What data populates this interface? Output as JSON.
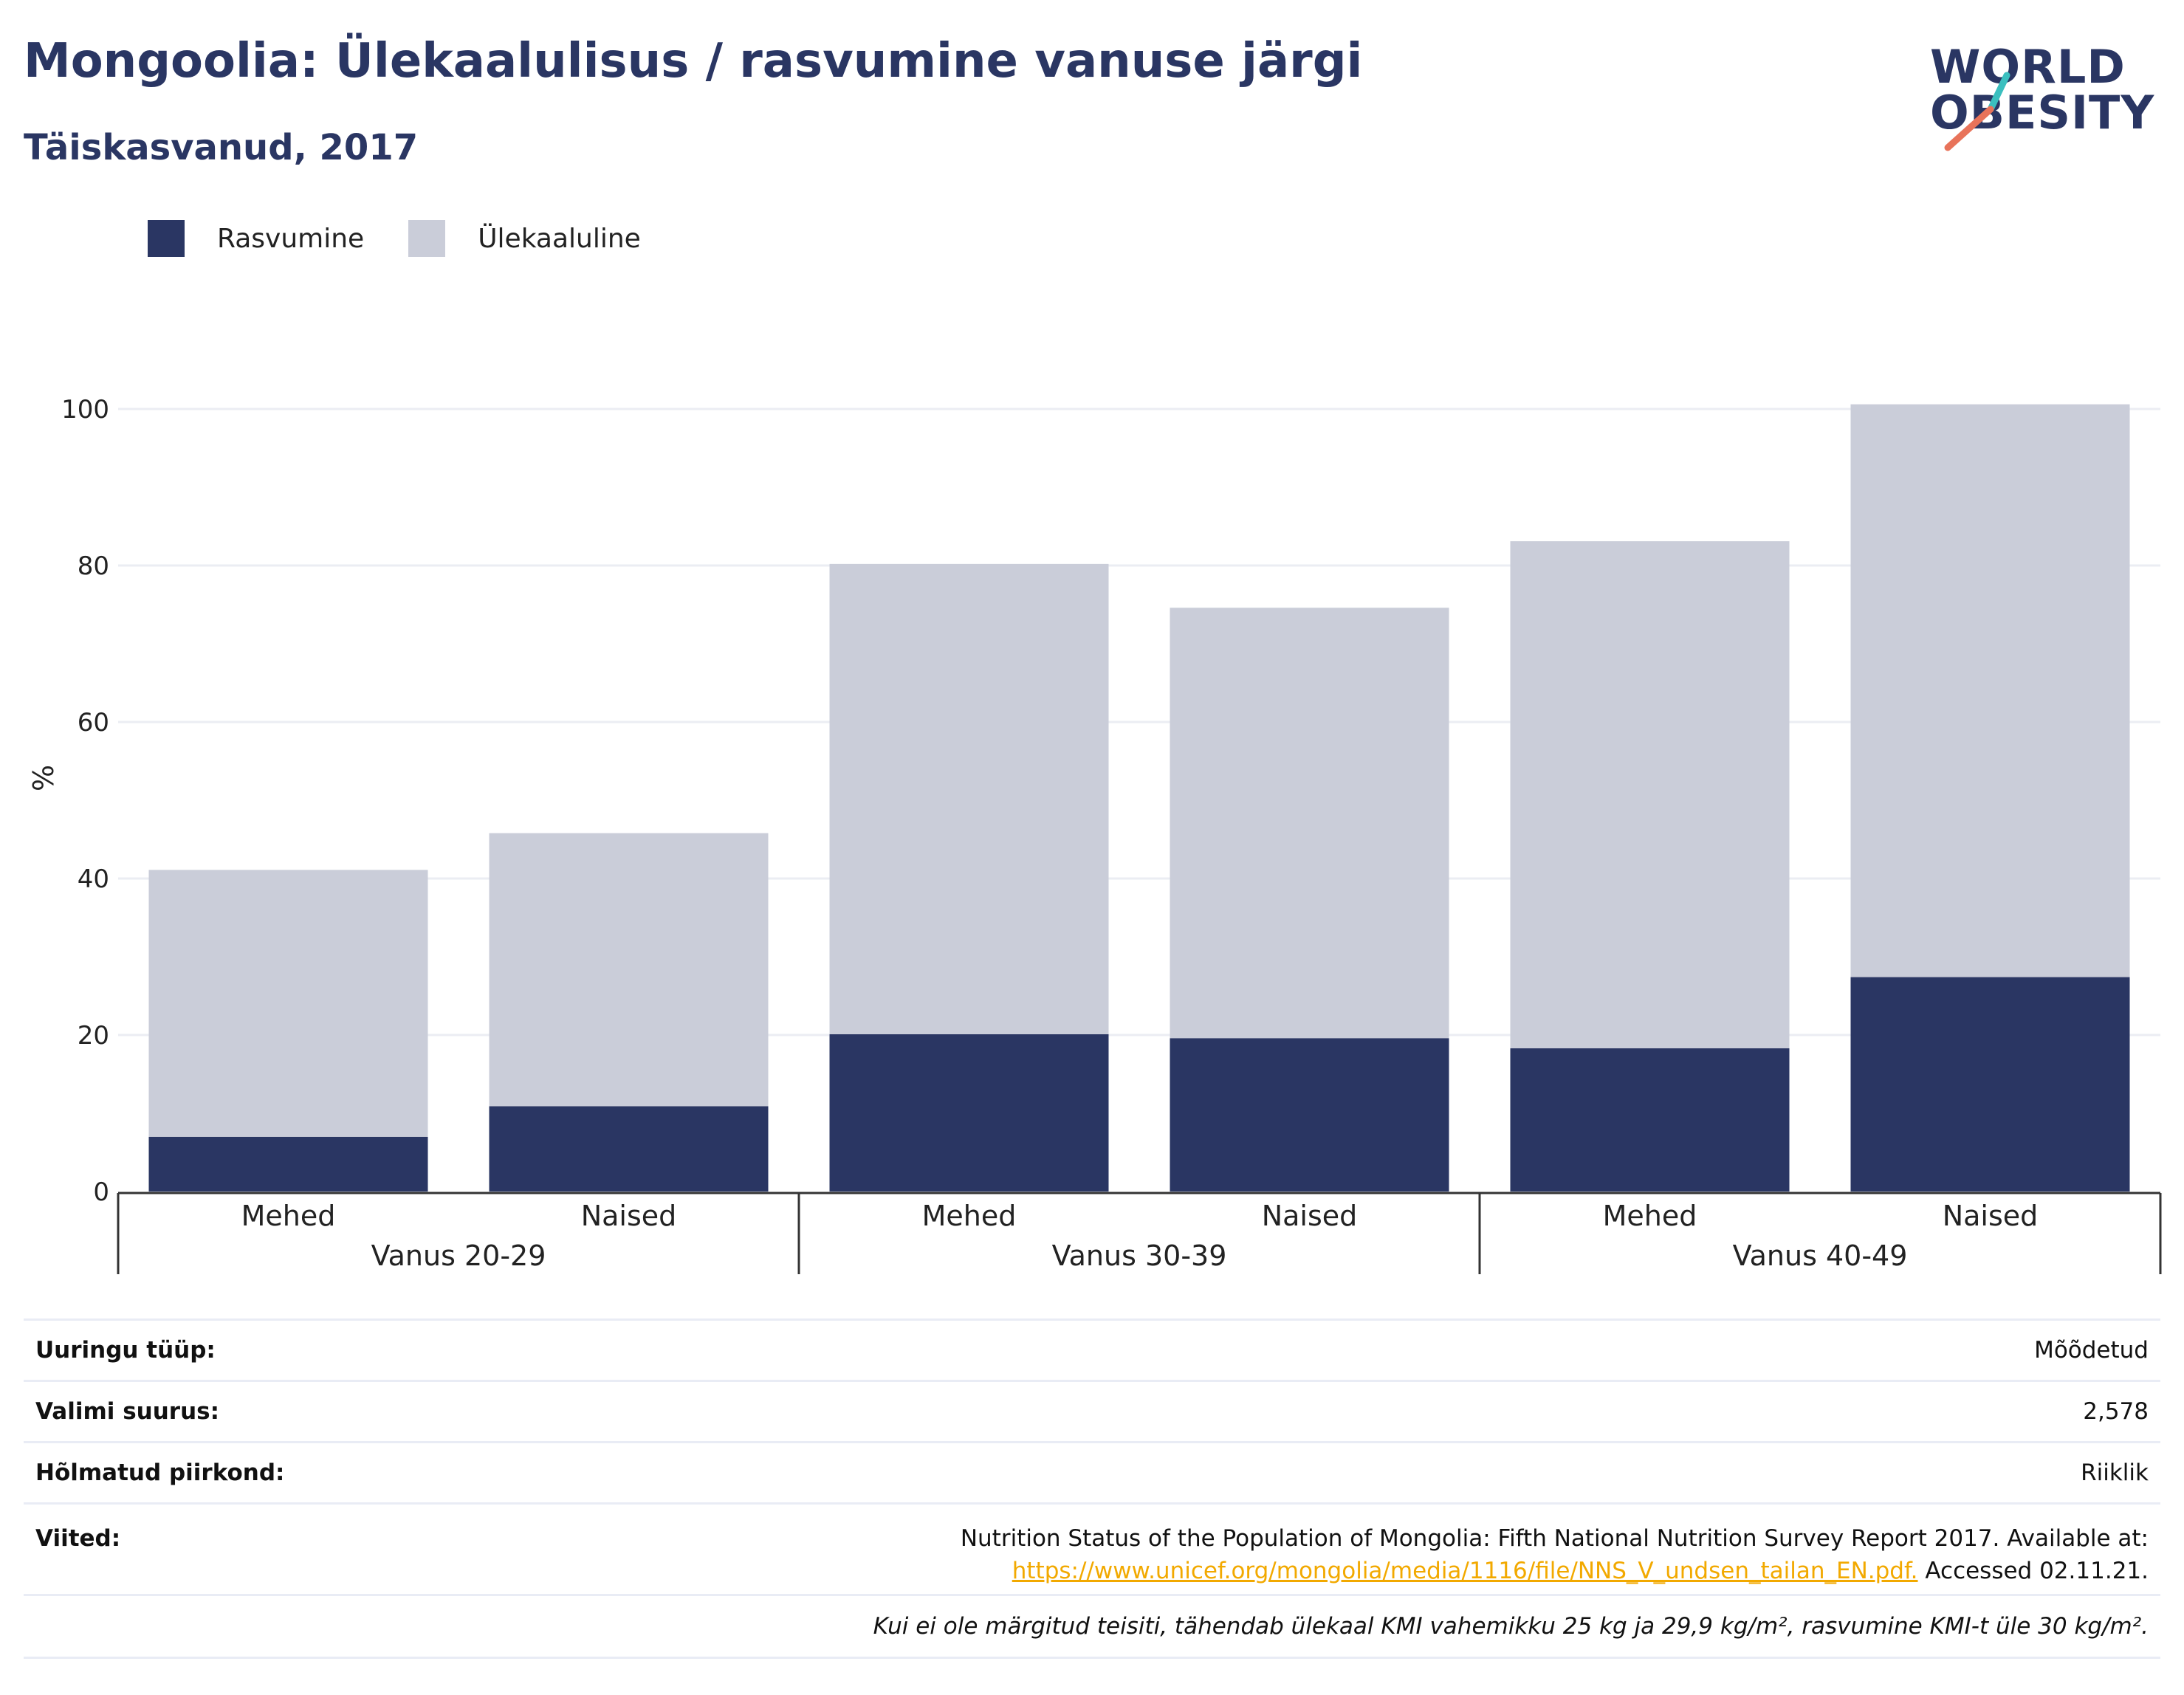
{
  "title": "Mongoolia: Ülekaalulisus / rasvumine vanuse järgi",
  "subtitle": "Täiskasvanud, 2017",
  "logo": {
    "line1": "WORLD",
    "line2": "OBESITY"
  },
  "colors": {
    "obesity": "#2a3663",
    "overweight": "#cacdd9",
    "title": "#2a3663",
    "link": "#f2a900",
    "logo_slash_teal": "#3bbfbf",
    "logo_slash_coral": "#e8735a"
  },
  "legend": [
    {
      "label": "Rasvumine",
      "color": "#2a3663"
    },
    {
      "label": "Ülekaaluline",
      "color": "#cacdd9"
    }
  ],
  "chart_data": {
    "type": "bar",
    "stacked": true,
    "ylabel": "%",
    "ylim": [
      0,
      100
    ],
    "yticks": [
      0,
      20,
      40,
      60,
      80,
      100
    ],
    "grid": true,
    "legend_position": "top-left",
    "groups": [
      {
        "label": "Vanus 20-29",
        "categories": [
          "Mehed",
          "Naised"
        ]
      },
      {
        "label": "Vanus 30-39",
        "categories": [
          "Mehed",
          "Naised"
        ]
      },
      {
        "label": "Vanus 40-49",
        "categories": [
          "Mehed",
          "Naised"
        ]
      }
    ],
    "categories": [
      "Mehed",
      "Naised",
      "Mehed",
      "Naised",
      "Mehed",
      "Naised"
    ],
    "series": [
      {
        "name": "Rasvumine",
        "values": [
          7.0,
          10.9,
          20.1,
          19.6,
          18.3,
          27.4
        ]
      },
      {
        "name": "Ülekaaluline",
        "values": [
          34.1,
          34.9,
          60.1,
          55.0,
          64.8,
          73.2
        ]
      }
    ]
  },
  "info": {
    "rows": [
      {
        "label": "Uuringu tüüp:",
        "value": "Mõõdetud"
      },
      {
        "label": "Valimi suurus:",
        "value": "2,578"
      },
      {
        "label": "Hõlmatud piirkond:",
        "value": "Riiklik"
      }
    ],
    "references_label": "Viited:",
    "reference_text": "Nutrition Status of the Population of Mongolia: Fifth National Nutrition Survey Report 2017. Available at:",
    "reference_link": "https://www.unicef.org/mongolia/media/1116/file/NNS_V_undsen_tailan_EN.pdf.",
    "reference_accessed": "Accessed 02.11.21.",
    "note": "Kui ei ole märgitud teisiti, tähendab ülekaal KMI vahemikku 25 kg ja 29,9 kg/m², rasvumine KMI-t üle 30 kg/m²."
  }
}
